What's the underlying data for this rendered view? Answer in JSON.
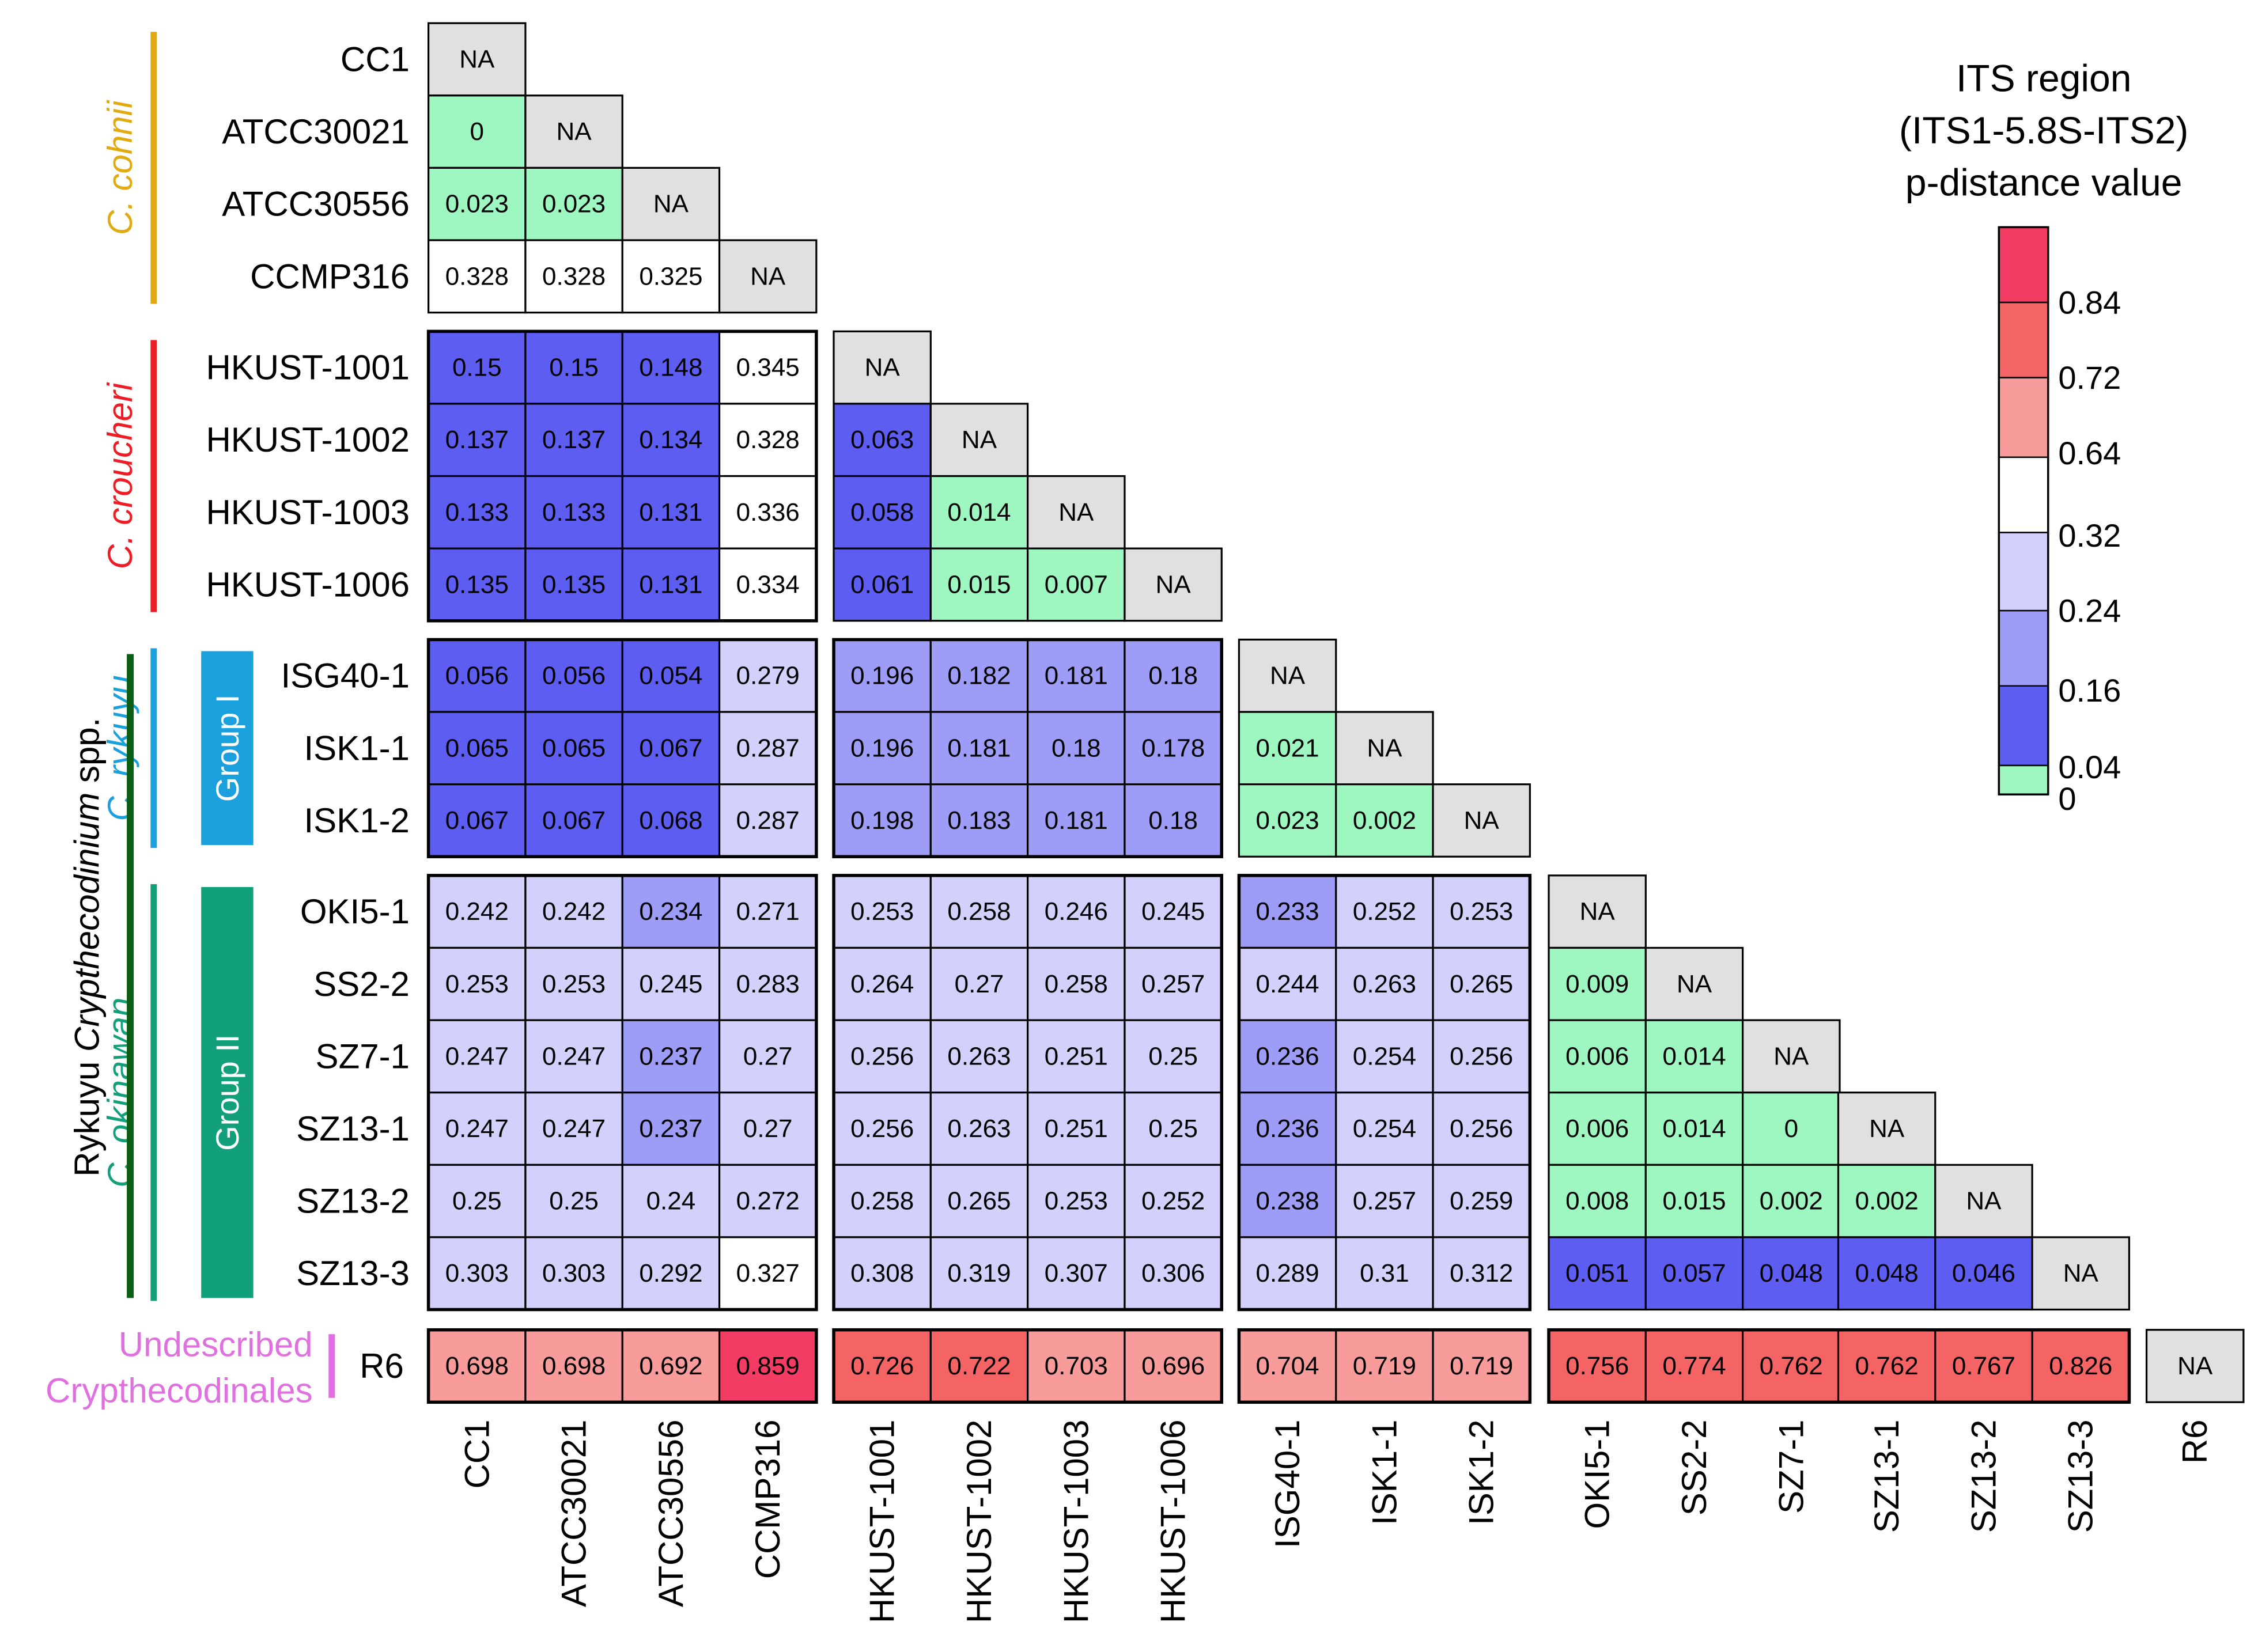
{
  "chart_data": {
    "type": "heatmap",
    "title": "ITS region",
    "subtitle": "(ITS1-5.8S-ITS2)",
    "value_label": "p-distance value",
    "na_label": "NA",
    "legend_ticks": [
      "0.84",
      "0.72",
      "0.64",
      "0.32",
      "0.24",
      "0.16",
      "0.04",
      "0"
    ],
    "legend_colors": [
      "#f23c64",
      "#f56464",
      "#f79b9b",
      "#ffffff",
      "#d1d1fb",
      "#9d9df7",
      "#5d5df2",
      "#9ef7c0"
    ],
    "labels": [
      "CC1",
      "ATCC30021",
      "ATCC30556",
      "CCMP316",
      "HKUST-1001",
      "HKUST-1002",
      "HKUST-1003",
      "HKUST-1006",
      "ISG40-1",
      "ISK1-1",
      "ISK1-2",
      "OKI5-1",
      "SS2-2",
      "SZ7-1",
      "SZ13-1",
      "SZ13-2",
      "SZ13-3",
      "R6"
    ],
    "values": [
      [],
      [
        0
      ],
      [
        0.023,
        0.023
      ],
      [
        0.328,
        0.328,
        0.325
      ],
      [
        0.15,
        0.15,
        0.148,
        0.345
      ],
      [
        0.137,
        0.137,
        0.134,
        0.328,
        0.063
      ],
      [
        0.133,
        0.133,
        0.131,
        0.336,
        0.058,
        0.014
      ],
      [
        0.135,
        0.135,
        0.131,
        0.334,
        0.061,
        0.015,
        0.007
      ],
      [
        0.056,
        0.056,
        0.054,
        0.279,
        0.196,
        0.182,
        0.181,
        0.18
      ],
      [
        0.065,
        0.065,
        0.067,
        0.287,
        0.196,
        0.181,
        0.18,
        0.178,
        0.021
      ],
      [
        0.067,
        0.067,
        0.068,
        0.287,
        0.198,
        0.183,
        0.181,
        0.18,
        0.023,
        0.002
      ],
      [
        0.242,
        0.242,
        0.234,
        0.271,
        0.253,
        0.258,
        0.246,
        0.245,
        0.233,
        0.252,
        0.253
      ],
      [
        0.253,
        0.253,
        0.245,
        0.283,
        0.264,
        0.27,
        0.258,
        0.257,
        0.244,
        0.263,
        0.265,
        0.009
      ],
      [
        0.247,
        0.247,
        0.237,
        0.27,
        0.256,
        0.263,
        0.251,
        0.25,
        0.236,
        0.254,
        0.256,
        0.006,
        0.014
      ],
      [
        0.247,
        0.247,
        0.237,
        0.27,
        0.256,
        0.263,
        0.251,
        0.25,
        0.236,
        0.254,
        0.256,
        0.006,
        0.014,
        0
      ],
      [
        0.25,
        0.25,
        0.24,
        0.272,
        0.258,
        0.265,
        0.253,
        0.252,
        0.238,
        0.257,
        0.259,
        0.008,
        0.015,
        0.002,
        0.002
      ],
      [
        0.303,
        0.303,
        0.292,
        0.327,
        0.308,
        0.319,
        0.307,
        0.306,
        0.289,
        0.31,
        0.312,
        0.051,
        0.057,
        0.048,
        0.048,
        0.046
      ],
      [
        0.698,
        0.698,
        0.692,
        0.859,
        0.726,
        0.722,
        0.703,
        0.696,
        0.704,
        0.719,
        0.719,
        0.756,
        0.774,
        0.762,
        0.762,
        0.767,
        0.826
      ]
    ],
    "groups": [
      {
        "name": "C. cohnii",
        "color": "#e0aa10",
        "italic": true,
        "members": [
          "CC1",
          "ATCC30021",
          "ATCC30556",
          "CCMP316"
        ]
      },
      {
        "name": "C. croucheri",
        "color": "#ee1c24",
        "italic": true,
        "members": [
          "HKUST-1001",
          "HKUST-1002",
          "HKUST-1003",
          "HKUST-1006"
        ]
      },
      {
        "name": "C. rykuyu",
        "color": "#1aa0dc",
        "italic": true,
        "members": [
          "ISG40-1",
          "ISK1-1",
          "ISK1-2"
        ]
      },
      {
        "name": "C. okinawan",
        "color": "#12a07a",
        "italic": true,
        "members": [
          "OKI5-1",
          "SS2-2",
          "SZ7-1",
          "SZ13-1",
          "SZ13-2",
          "SZ13-3"
        ]
      },
      {
        "name_lines": [
          "Undescribed",
          "Crypthecodinales"
        ],
        "color": "#e070e0",
        "italic": false,
        "members": [
          "R6"
        ]
      }
    ],
    "subgroups": [
      {
        "name": "Group I",
        "color": "#1aa0dc",
        "members": [
          "ISG40-1",
          "ISK1-1",
          "ISK1-2"
        ]
      },
      {
        "name": "Group II",
        "color": "#12a07a",
        "members": [
          "OKI5-1",
          "SS2-2",
          "SZ7-1",
          "SZ13-1",
          "SZ13-2",
          "SZ13-3"
        ]
      }
    ],
    "clade": {
      "prefix": "Rykuyu ",
      "genus": "Crypthecodinium",
      "suffix": " spp.",
      "color": "#0a5e14"
    }
  }
}
